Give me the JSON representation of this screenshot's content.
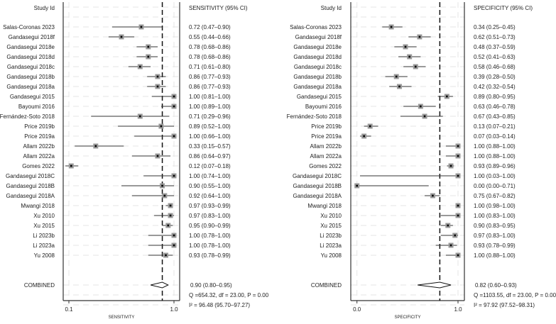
{
  "chart_data": [
    {
      "type": "forest",
      "study_header": "Study Id",
      "estimate_header": "SENSITIVITY (95% CI)",
      "xlabel": "SENSITIVITY",
      "xlim": [
        0.1,
        1.0
      ],
      "xticks": [
        "0.1",
        "1.0"
      ],
      "xtick_values": [
        0.1,
        1.0
      ],
      "reference_line": 0.9,
      "grid": true,
      "studies": [
        {
          "label": "Salas-Coronas 2023",
          "est": 0.72,
          "lo": 0.47,
          "hi": 0.9,
          "text": "0.72 (0.47–0.90)"
        },
        {
          "label": "Gandasegui 2018f",
          "est": 0.55,
          "lo": 0.44,
          "hi": 0.66,
          "text": "0.55 (0.44–0.66)"
        },
        {
          "label": "Gandasegui 2018e",
          "est": 0.78,
          "lo": 0.68,
          "hi": 0.86,
          "text": "0.78 (0.68–0.86)"
        },
        {
          "label": "Gandasegui 2018d",
          "est": 0.78,
          "lo": 0.68,
          "hi": 0.86,
          "text": "0.78 (0.68–0.86)"
        },
        {
          "label": "Gandasegui 2018c",
          "est": 0.71,
          "lo": 0.61,
          "hi": 0.8,
          "text": "0.71 (0.61–0.80)"
        },
        {
          "label": "Gandasegui 2018b",
          "est": 0.86,
          "lo": 0.77,
          "hi": 0.93,
          "text": "0.86 (0.77–0.93)"
        },
        {
          "label": "Gandasegui 2018a",
          "est": 0.86,
          "lo": 0.77,
          "hi": 0.93,
          "text": "0.86 (0.77–0.93)"
        },
        {
          "label": "Gandasegui 2015",
          "est": 1.0,
          "lo": 0.81,
          "hi": 1.0,
          "text": "1.00 (0.81–1.00)"
        },
        {
          "label": "Bayoumi 2016",
          "est": 1.0,
          "lo": 0.89,
          "hi": 1.0,
          "text": "1.00 (0.89–1.00)"
        },
        {
          "label": "Fernández-Soto 2018",
          "est": 0.71,
          "lo": 0.29,
          "hi": 0.96,
          "text": "0.71 (0.29–0.96)"
        },
        {
          "label": "Price 2019b",
          "est": 0.89,
          "lo": 0.52,
          "hi": 1.0,
          "text": "0.89 (0.52–1.00)"
        },
        {
          "label": "Price 2019a",
          "est": 1.0,
          "lo": 0.66,
          "hi": 1.0,
          "text": "1.00 (0.66–1.00)"
        },
        {
          "label": "Allam 2022b",
          "est": 0.33,
          "lo": 0.15,
          "hi": 0.57,
          "text": "0.33 (0.15–0.57)"
        },
        {
          "label": "Allam 2022a",
          "est": 0.86,
          "lo": 0.64,
          "hi": 0.97,
          "text": "0.86 (0.64–0.97)"
        },
        {
          "label": "Gomes 2022",
          "est": 0.12,
          "lo": 0.07,
          "hi": 0.18,
          "text": "0.12 (0.07–0.18)"
        },
        {
          "label": "Gandasegui 2018C",
          "est": 1.0,
          "lo": 0.74,
          "hi": 1.0,
          "text": "1.00 (0.74–1.00)"
        },
        {
          "label": "Gandasegui 2018B",
          "est": 0.9,
          "lo": 0.55,
          "hi": 1.0,
          "text": "0.90 (0.55–1.00)"
        },
        {
          "label": "Gandasegui 2018A",
          "est": 0.92,
          "lo": 0.64,
          "hi": 1.0,
          "text": "0.92 (0.64–1.00)"
        },
        {
          "label": "Mwangi 2018",
          "est": 0.97,
          "lo": 0.93,
          "hi": 0.99,
          "text": "0.97 (0.93–0.99)"
        },
        {
          "label": "Xu 2010",
          "est": 0.97,
          "lo": 0.83,
          "hi": 1.0,
          "text": "0.97 (0.83–1.00)"
        },
        {
          "label": "Xu 2015",
          "est": 0.95,
          "lo": 0.9,
          "hi": 0.99,
          "text": "0.95 (0.90–0.99)"
        },
        {
          "label": "Li 2023b",
          "est": 1.0,
          "lo": 0.78,
          "hi": 1.0,
          "text": "1.00 (0.78–1.00)"
        },
        {
          "label": "Li 2023a",
          "est": 1.0,
          "lo": 0.78,
          "hi": 1.0,
          "text": "1.00 (0.78–1.00)"
        },
        {
          "label": "Yu 2008",
          "est": 0.93,
          "lo": 0.78,
          "hi": 0.99,
          "text": "0.93 (0.78–0.99)"
        }
      ],
      "combined": {
        "label": "COMBINED",
        "est": 0.9,
        "lo": 0.8,
        "hi": 0.95,
        "text": "0.90 (0.80–0.95)"
      },
      "heterogeneity": "Q =654.32, df = 23.00, P =  0.00",
      "i2": "I² = 96.48 (95.70–97.27)"
    },
    {
      "type": "forest",
      "study_header": "Study Id",
      "estimate_header": "SPECIFICITY (95% CI)",
      "xlabel": "SPECIFICITY",
      "xlim": [
        0.0,
        1.0
      ],
      "xticks": [
        "0.0",
        "1.0"
      ],
      "xtick_values": [
        0.0,
        1.0
      ],
      "reference_line": 0.82,
      "grid": true,
      "studies": [
        {
          "label": "Salas-Coronas 2023",
          "est": 0.34,
          "lo": 0.25,
          "hi": 0.45,
          "text": "0.34 (0.25–0.45)"
        },
        {
          "label": "Gandasegui 2018f",
          "est": 0.62,
          "lo": 0.51,
          "hi": 0.73,
          "text": "0.62 (0.51–0.73)"
        },
        {
          "label": "Gandasegui 2018e",
          "est": 0.48,
          "lo": 0.37,
          "hi": 0.59,
          "text": "0.48 (0.37–0.59)"
        },
        {
          "label": "Gandasegui 2018d",
          "est": 0.52,
          "lo": 0.41,
          "hi": 0.63,
          "text": "0.52 (0.41–0.63)"
        },
        {
          "label": "Gandasegui 2018c",
          "est": 0.58,
          "lo": 0.46,
          "hi": 0.68,
          "text": "0.58 (0.46–0.68)"
        },
        {
          "label": "Gandasegui 2018b",
          "est": 0.39,
          "lo": 0.28,
          "hi": 0.5,
          "text": "0.39 (0.28–0.50)"
        },
        {
          "label": "Gandasegui 2018a",
          "est": 0.42,
          "lo": 0.32,
          "hi": 0.54,
          "text": "0.42 (0.32–0.54)"
        },
        {
          "label": "Gandasegui 2015",
          "est": 0.89,
          "lo": 0.8,
          "hi": 0.95,
          "text": "0.89 (0.80–0.95)"
        },
        {
          "label": "Bayoumi 2016",
          "est": 0.63,
          "lo": 0.46,
          "hi": 0.78,
          "text": "0.63 (0.46–0.78)"
        },
        {
          "label": "Fernández-Soto 2018",
          "est": 0.67,
          "lo": 0.43,
          "hi": 0.85,
          "text": "0.67 (0.43–0.85)"
        },
        {
          "label": "Price 2019b",
          "est": 0.13,
          "lo": 0.07,
          "hi": 0.21,
          "text": "0.13 (0.07–0.21)"
        },
        {
          "label": "Price 2019a",
          "est": 0.07,
          "lo": 0.03,
          "hi": 0.14,
          "text": "0.07 (0.03–0.14)"
        },
        {
          "label": "Allam 2022b",
          "est": 1.0,
          "lo": 0.88,
          "hi": 1.0,
          "text": "1.00 (0.88–1.00)"
        },
        {
          "label": "Allam 2022a",
          "est": 1.0,
          "lo": 0.88,
          "hi": 1.0,
          "text": "1.00 (0.88–1.00)"
        },
        {
          "label": "Gomes 2022",
          "est": 0.93,
          "lo": 0.89,
          "hi": 0.96,
          "text": "0.93 (0.89–0.96)"
        },
        {
          "label": "Gandasegui 2018C",
          "est": 1.0,
          "lo": 0.03,
          "hi": 1.0,
          "text": "1.00 (0.03–1.00)"
        },
        {
          "label": "Gandasegui 2018B",
          "est": 0.0,
          "lo": 0.0,
          "hi": 0.71,
          "text": "0.00 (0.00–0.71)"
        },
        {
          "label": "Gandasegui 2018A",
          "est": 0.75,
          "lo": 0.67,
          "hi": 0.82,
          "text": "0.75 (0.67–0.82)"
        },
        {
          "label": "Mwangi 2018",
          "est": 1.0,
          "lo": 0.98,
          "hi": 1.0,
          "text": "1.00 (0.98–1.00)"
        },
        {
          "label": "Xu 2010",
          "est": 1.0,
          "lo": 0.83,
          "hi": 1.0,
          "text": "1.00 (0.83–1.00)"
        },
        {
          "label": "Xu 2015",
          "est": 0.9,
          "lo": 0.83,
          "hi": 0.95,
          "text": "0.90 (0.83–0.95)"
        },
        {
          "label": "Li 2023b",
          "est": 0.97,
          "lo": 0.83,
          "hi": 1.0,
          "text": "0.97 (0.83–1.00)"
        },
        {
          "label": "Li 2023a",
          "est": 0.93,
          "lo": 0.78,
          "hi": 0.99,
          "text": "0.93 (0.78–0.99)"
        },
        {
          "label": "Yu 2008",
          "est": 1.0,
          "lo": 0.88,
          "hi": 1.0,
          "text": "1.00 (0.88–1.00)"
        }
      ],
      "combined": {
        "label": "COMBINED",
        "est": 0.82,
        "lo": 0.6,
        "hi": 0.93,
        "text": "0.82 (0.60–0.93)"
      },
      "heterogeneity": "Q =1103.55, df = 23.00, P =  0.00",
      "i2": "I² = 97.92 (97.52–98.31)"
    }
  ]
}
